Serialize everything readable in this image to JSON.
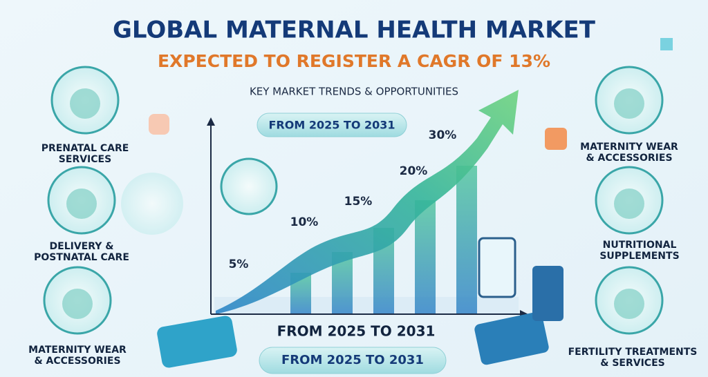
{
  "header": {
    "title": "GLOBAL MATERNAL HEALTH MARKET",
    "subtitle": "EXPECTED TO REGISTER A CAGR OF 13%"
  },
  "trends": {
    "heading": "KEY MARKET TRENDS & OPPORTUNITIES",
    "period_badges": [
      "FROM 2025 TO 2031",
      "FROM 2025 TO 2031",
      "FROM 2025 TO 2031"
    ],
    "growth_labels": [
      "5%",
      "10%",
      "15%",
      "20%",
      "30%"
    ]
  },
  "left_items": [
    {
      "label": [
        "PRENATAL CARE",
        "SERVICES"
      ]
    },
    {
      "label": [
        "DELIVERY &",
        "POSTNATAL CARE"
      ]
    },
    {
      "label": [
        "MATERNITY WEAR",
        "& ACCESSORIES"
      ]
    }
  ],
  "right_items": [
    {
      "label": [
        "MATERNITY WEAR",
        "& ACCESSORIES"
      ]
    },
    {
      "label": [
        "NUTRITIONAL",
        "SUPPLEMENTS"
      ]
    },
    {
      "label": [
        "FERTILITY TREATMENTS",
        "& SERVICES"
      ]
    }
  ]
}
